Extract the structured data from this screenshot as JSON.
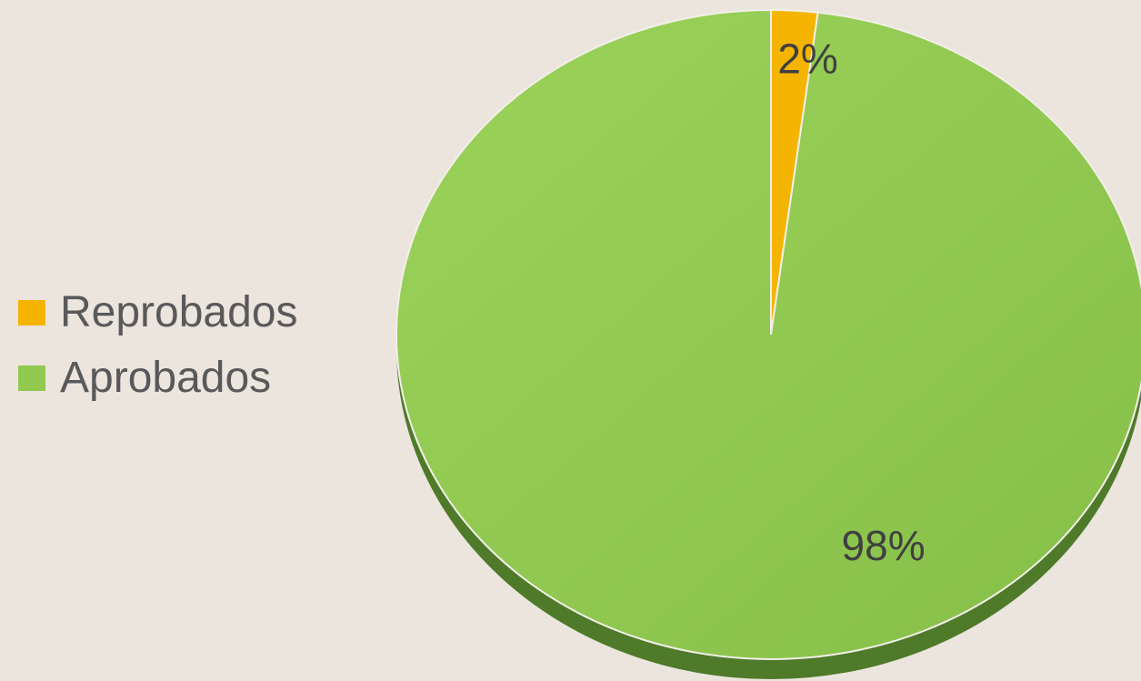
{
  "chart_data": {
    "type": "pie",
    "title": "",
    "slices": [
      {
        "label": "Reprobados",
        "value": 2,
        "display": "2%",
        "color": "#f5b400"
      },
      {
        "label": "Aprobados",
        "value": 98,
        "display": "98%",
        "color": "#92c94f"
      }
    ],
    "legend_position": "left",
    "start": "top (12 o'clock), clockwise"
  },
  "legend": {
    "items": [
      {
        "label": "Reprobados",
        "color": "#f5b400"
      },
      {
        "label": "Aprobados",
        "color": "#92c94f"
      }
    ]
  }
}
